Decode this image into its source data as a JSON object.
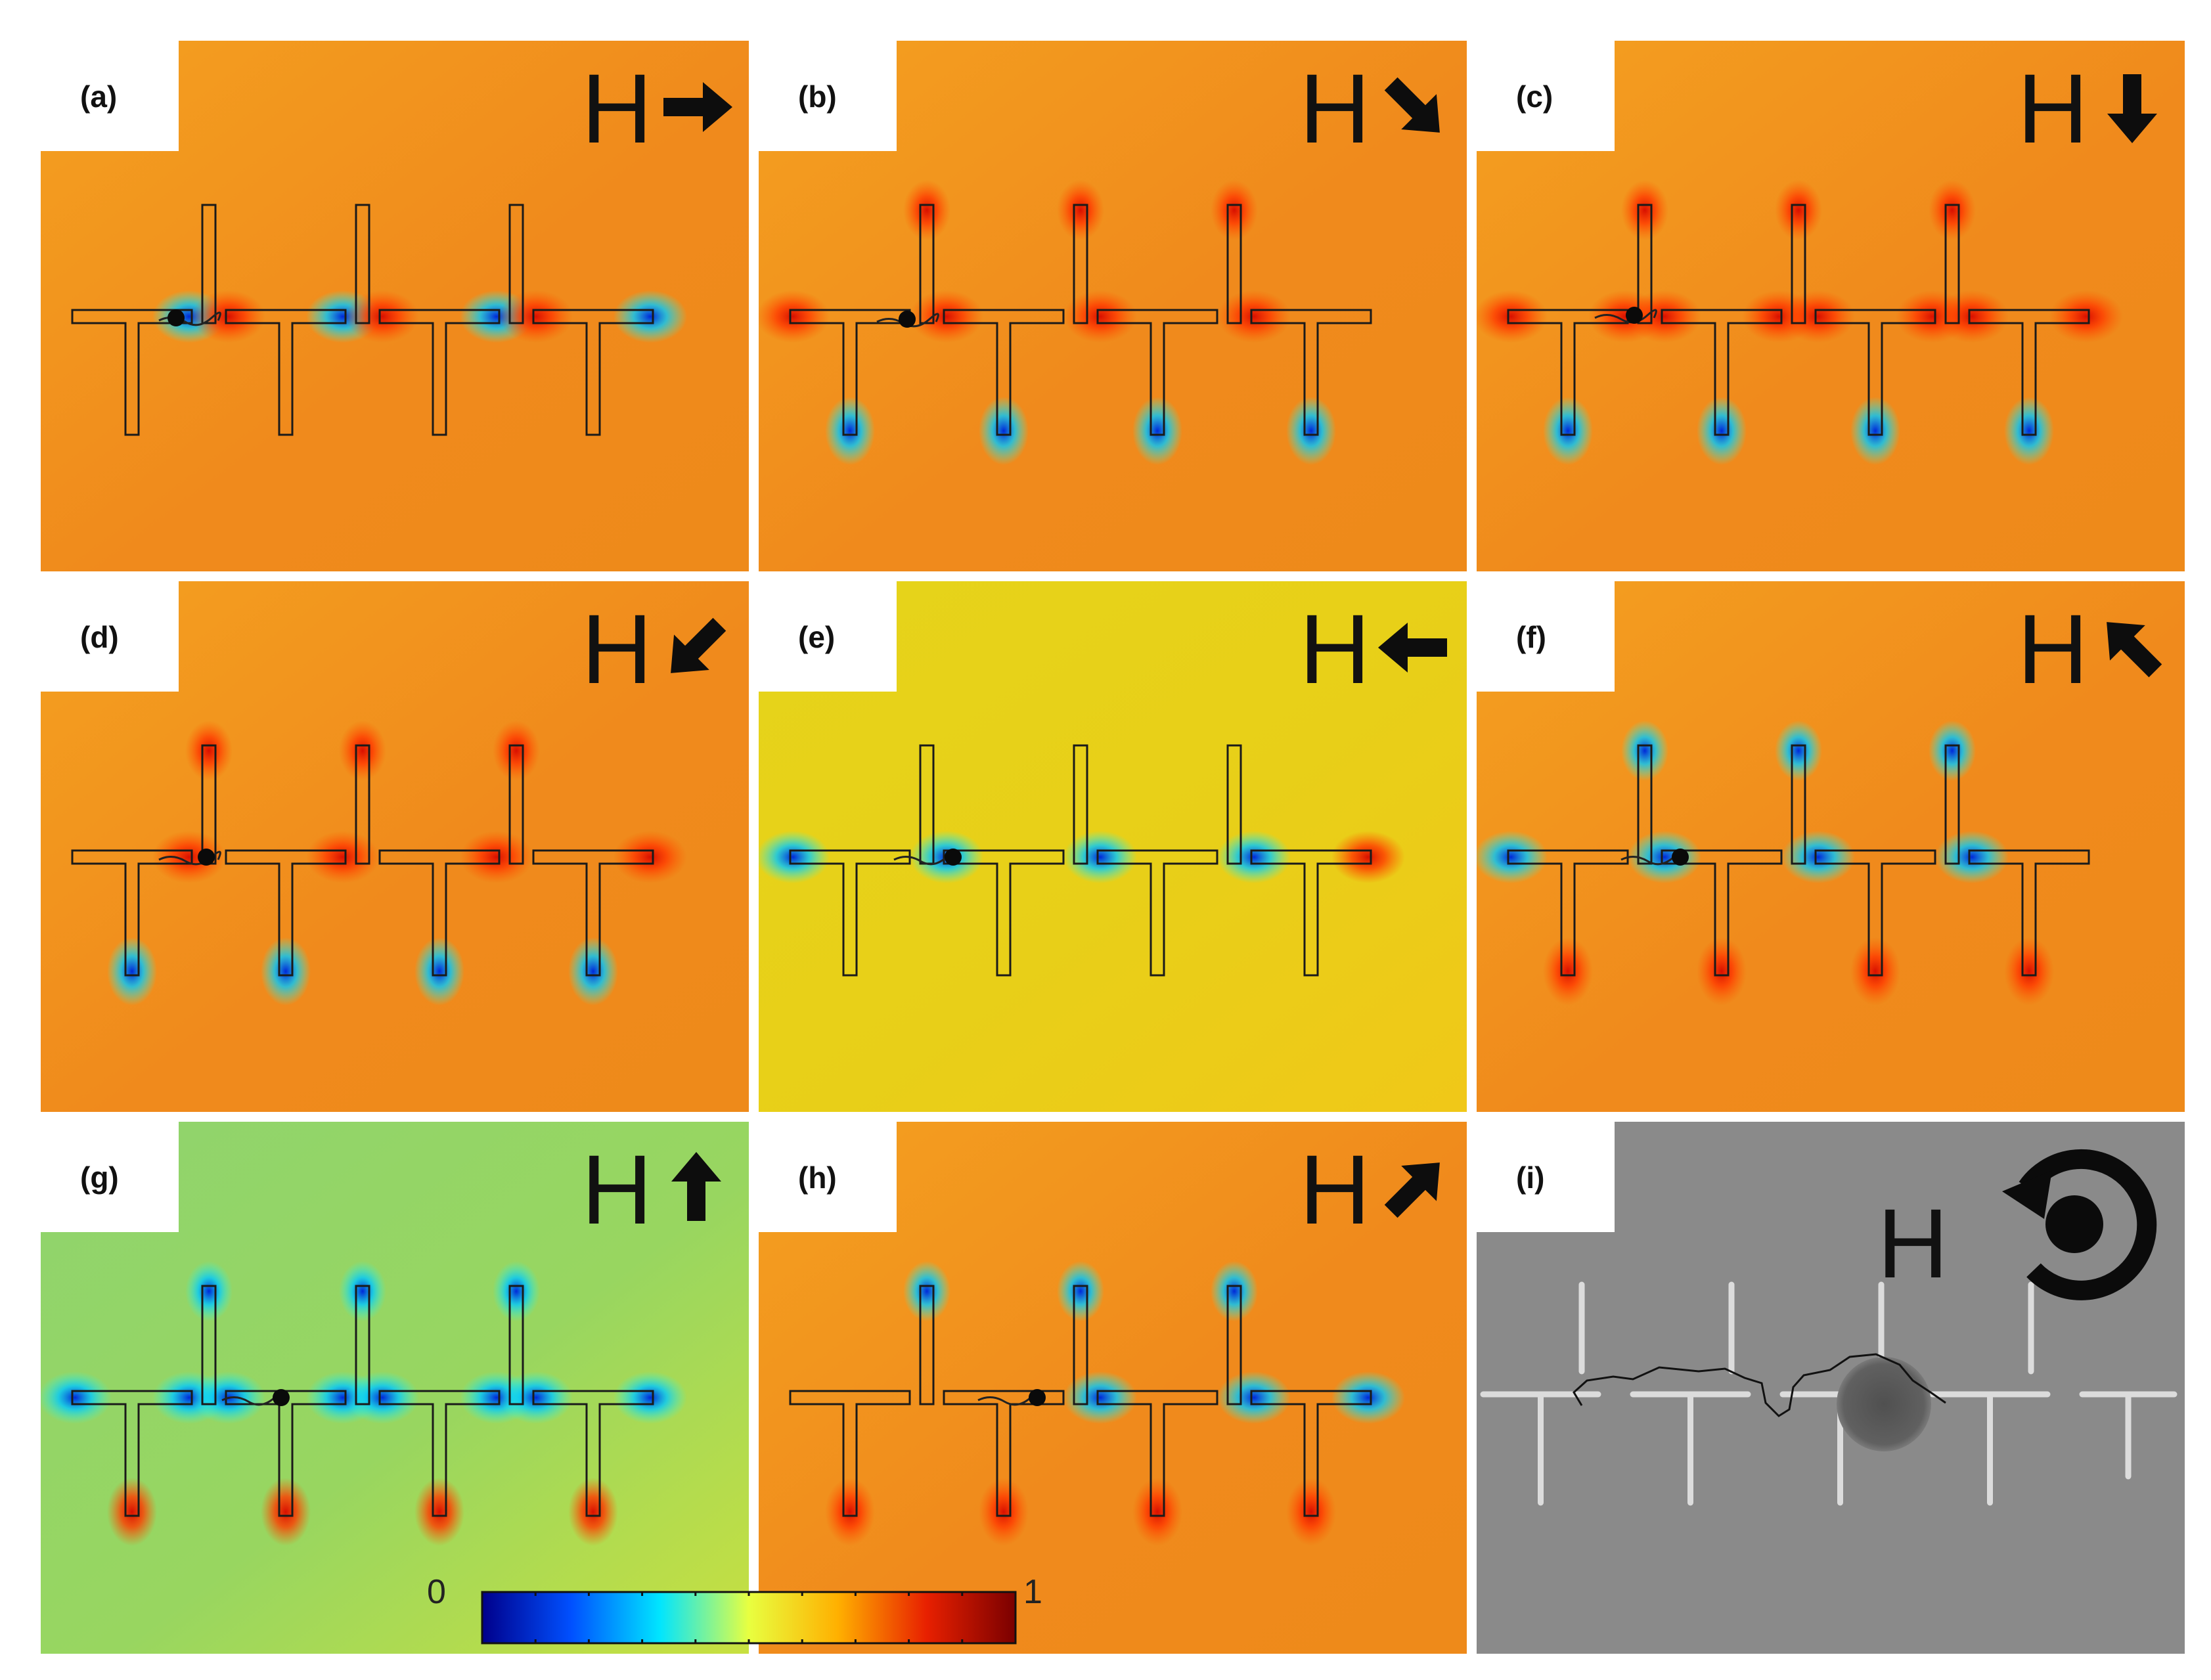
{
  "figure": {
    "panels": [
      {
        "id": "a",
        "label": "(a)",
        "field_label": "H",
        "arrow": "right",
        "state": "orange"
      },
      {
        "id": "b",
        "label": "(b)",
        "field_label": "H",
        "arrow": "down-right",
        "state": "orange"
      },
      {
        "id": "c",
        "label": "(c)",
        "field_label": "H",
        "arrow": "down",
        "state": "orange"
      },
      {
        "id": "d",
        "label": "(d)",
        "field_label": "H",
        "arrow": "down-left",
        "state": "orange"
      },
      {
        "id": "e",
        "label": "(e)",
        "field_label": "H",
        "arrow": "left",
        "state": "yellow"
      },
      {
        "id": "f",
        "label": "(f)",
        "field_label": "H",
        "arrow": "up-left",
        "state": "orange"
      },
      {
        "id": "g",
        "label": "(g)",
        "field_label": "H",
        "arrow": "up",
        "state": "green"
      },
      {
        "id": "h",
        "label": "(h)",
        "field_label": "H",
        "arrow": "up-right",
        "state": "orange"
      },
      {
        "id": "i",
        "label": "(i)",
        "field_label": "H",
        "arrow": "rotating",
        "state": "micrograph"
      }
    ],
    "colorbar": {
      "min_label": "0",
      "max_label": "1",
      "colormap": [
        "#00008b",
        "#0050ff",
        "#00e5ff",
        "#e8ff40",
        "#ffb000",
        "#e82000",
        "#7a0000"
      ]
    },
    "colors": {
      "orange_bg": "#f08a1c",
      "yellow_bg": "#e8cf18",
      "green_bg": "#98d660",
      "micrograph_bg": "#8a8a8a"
    }
  }
}
